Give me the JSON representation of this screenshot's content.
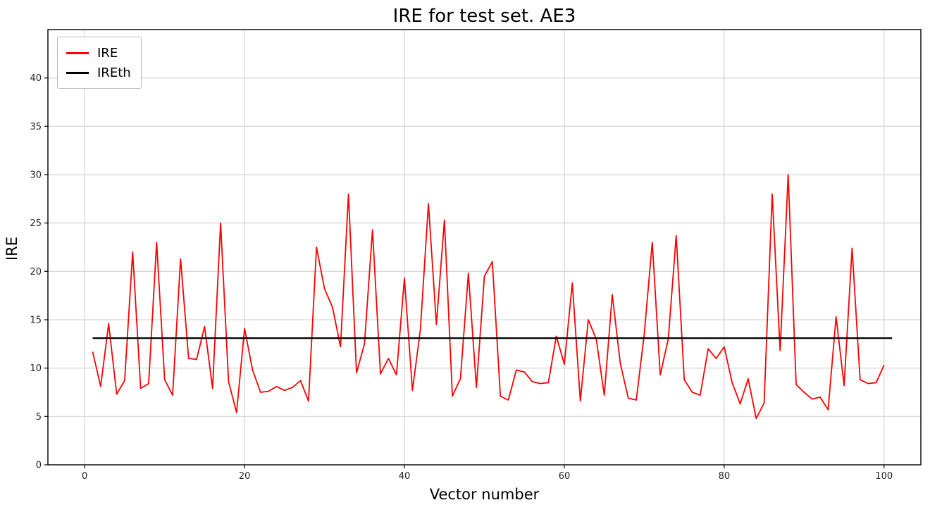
{
  "page": {
    "title": "IRE for test set. AE3"
  },
  "chart_data": {
    "type": "line",
    "title": "IRE for test set. AE3",
    "xlabel": "Vector number",
    "ylabel": "IRE",
    "grid": true,
    "legend_position": "upper left",
    "xlim": [
      -4.6,
      104.6
    ],
    "ylim": [
      0,
      45
    ],
    "xticks": [
      0,
      20,
      40,
      60,
      80,
      100
    ],
    "yticks": [
      0,
      5,
      10,
      15,
      20,
      25,
      30,
      35,
      40
    ],
    "x": [
      1,
      2,
      3,
      4,
      5,
      6,
      7,
      8,
      9,
      10,
      11,
      12,
      13,
      14,
      15,
      16,
      17,
      18,
      19,
      20,
      21,
      22,
      23,
      24,
      25,
      26,
      27,
      28,
      29,
      30,
      31,
      32,
      33,
      34,
      35,
      36,
      37,
      38,
      39,
      40,
      41,
      42,
      43,
      44,
      45,
      46,
      47,
      48,
      49,
      50,
      51,
      52,
      53,
      54,
      55,
      56,
      57,
      58,
      59,
      60,
      61,
      62,
      63,
      64,
      65,
      66,
      67,
      68,
      69,
      70,
      71,
      72,
      73,
      74,
      75,
      76,
      77,
      78,
      79,
      80,
      81,
      82,
      83,
      84,
      85,
      86,
      87,
      88,
      89,
      90,
      91,
      92,
      93,
      94,
      95,
      96,
      97,
      98,
      99,
      100
    ],
    "series": [
      {
        "name": "IRE",
        "color": "#ff0000",
        "width": 1.8,
        "values": [
          11.7,
          8.1,
          14.6,
          7.3,
          8.7,
          22.0,
          7.9,
          8.4,
          23.0,
          8.8,
          7.2,
          21.3,
          11.0,
          10.9,
          14.3,
          7.9,
          25.0,
          8.6,
          5.4,
          14.1,
          9.8,
          7.5,
          7.6,
          8.1,
          7.7,
          8.0,
          8.7,
          6.6,
          22.5,
          18.2,
          16.3,
          12.2,
          28.0,
          9.5,
          12.5,
          24.3,
          9.4,
          11.0,
          9.3,
          19.3,
          7.7,
          14.0,
          27.0,
          14.5,
          25.3,
          7.1,
          8.9,
          19.8,
          8.0,
          19.5,
          21.0,
          7.1,
          6.7,
          9.8,
          9.6,
          8.6,
          8.4,
          8.5,
          13.3,
          10.4,
          18.8,
          6.6,
          15.0,
          13.0,
          7.2,
          17.6,
          10.5,
          6.9,
          6.7,
          13.5,
          23.0,
          9.3,
          13.0,
          23.7,
          8.8,
          7.5,
          7.2,
          12.0,
          11.0,
          12.2,
          8.5,
          6.3,
          8.9,
          4.8,
          6.4,
          28.0,
          11.8,
          30.0,
          8.3,
          7.5,
          6.8,
          7.0,
          5.7,
          15.3,
          8.2,
          22.4,
          8.8,
          8.4,
          8.5,
          10.3
        ]
      },
      {
        "name": "IREth",
        "color": "#000000",
        "width": 2.2,
        "constant": 13.1,
        "x_start": 1,
        "x_end": 101
      }
    ],
    "style": {
      "grid_color": "#cccccc",
      "frame_color": "#000000",
      "tick_label_color": "#262626",
      "tick_font_size": 13
    }
  }
}
